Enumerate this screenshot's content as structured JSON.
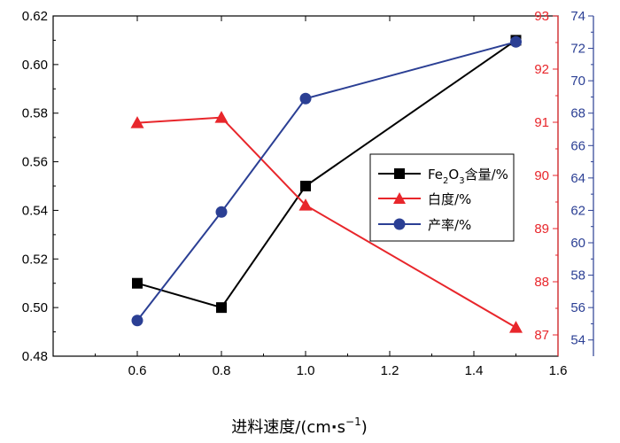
{
  "chart_data": {
    "type": "line",
    "title": "",
    "xlabel": "进料速度/(cm·s⁻¹)",
    "xlabel_parts": {
      "main": "进料速度/(cm",
      "dot": "·",
      "s": "s",
      "exp": "−1",
      "close": ")"
    },
    "x": [
      0.6,
      0.8,
      1.0,
      1.5
    ],
    "xlim": [
      0.4,
      1.6
    ],
    "xticks": [
      "0.6",
      "0.8",
      "1.0",
      "1.2",
      "1.4",
      "1.6"
    ],
    "xtick_values": [
      0.6,
      0.8,
      1.0,
      1.2,
      1.4,
      1.6
    ],
    "axes": {
      "left": {
        "ylim": [
          0.48,
          0.62
        ],
        "ticks": [
          "0.48",
          "0.50",
          "0.52",
          "0.54",
          "0.56",
          "0.58",
          "0.60",
          "0.62"
        ],
        "tick_values": [
          0.48,
          0.5,
          0.52,
          0.54,
          0.56,
          0.58,
          0.6,
          0.62
        ],
        "color": "#000000"
      },
      "right1": {
        "ylim": [
          86.6,
          93.0
        ],
        "ticks": [
          "87",
          "88",
          "89",
          "90",
          "91",
          "92",
          "93"
        ],
        "tick_values": [
          87,
          88,
          89,
          90,
          91,
          92,
          93
        ],
        "color": "#e8262b"
      },
      "right2": {
        "ylim": [
          53.0,
          74.0
        ],
        "ticks": [
          "54",
          "56",
          "58",
          "60",
          "62",
          "64",
          "66",
          "68",
          "70",
          "72",
          "74"
        ],
        "tick_values": [
          54,
          56,
          58,
          60,
          62,
          64,
          66,
          68,
          70,
          72,
          74
        ],
        "color": "#2b3f94"
      }
    },
    "series": [
      {
        "name": "Fe₂O₃含量/%",
        "name_parts": {
          "a": "Fe",
          "sub1": "2",
          "b": "O",
          "sub2": "3",
          "c": "含量/%"
        },
        "axis": "left",
        "marker": "square",
        "color": "#000000",
        "values": [
          0.51,
          0.5,
          0.55,
          0.61
        ]
      },
      {
        "name": "白度/%",
        "axis": "right1",
        "marker": "triangle",
        "color": "#e8262b",
        "values": [
          90.99,
          91.09,
          89.44,
          87.14
        ]
      },
      {
        "name": "产率/%",
        "axis": "right2",
        "marker": "circle",
        "color": "#2b3f94",
        "values": [
          55.2,
          61.9,
          68.9,
          72.4
        ]
      }
    ],
    "legend": "center-right",
    "grid": false
  }
}
